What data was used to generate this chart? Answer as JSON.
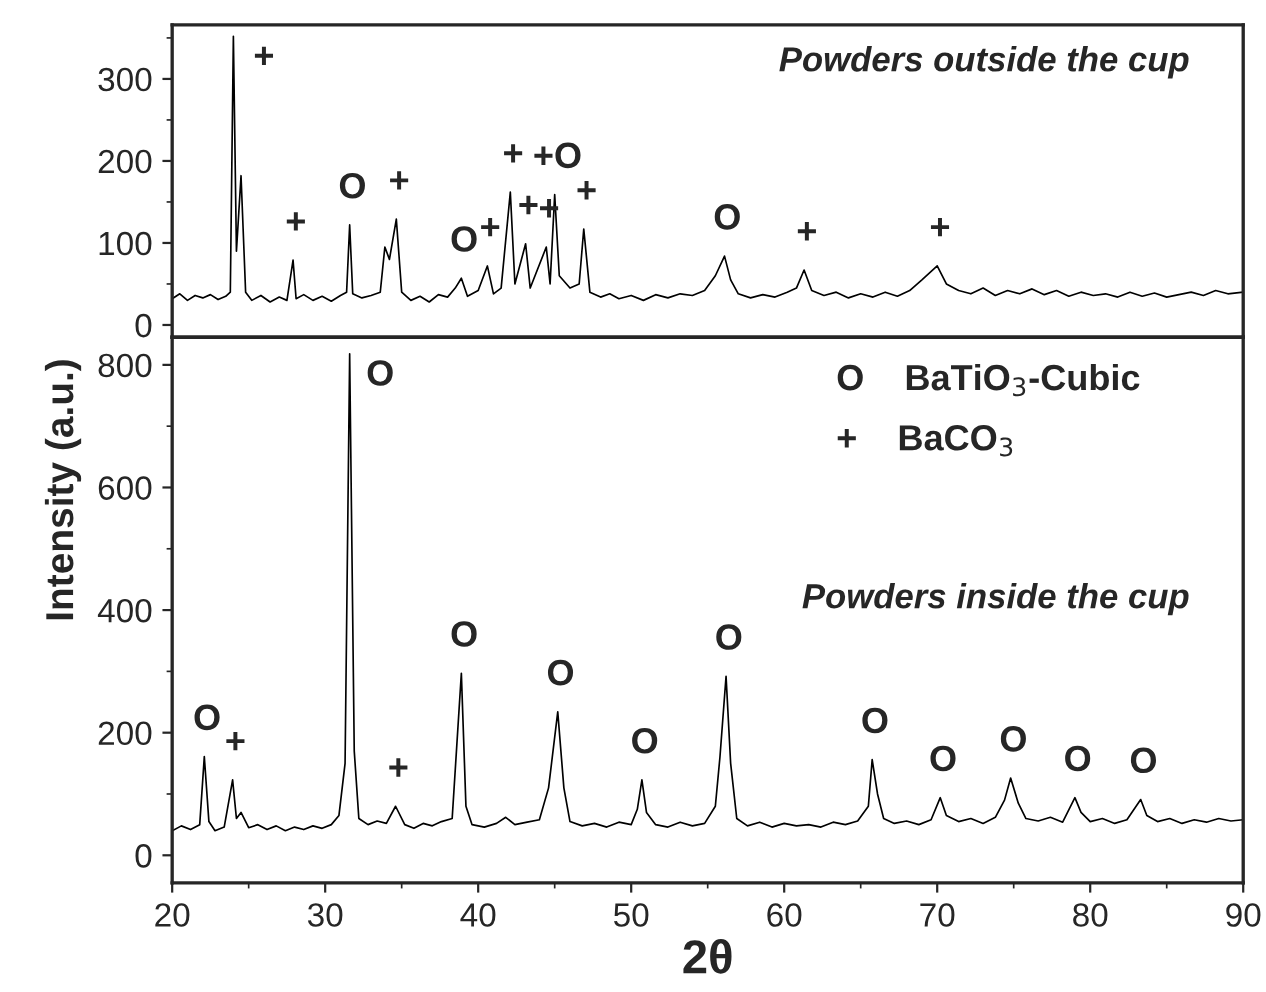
{
  "chart_data": [
    {
      "type": "line",
      "title": "Powders outside the cup",
      "xlim": [
        20,
        90
      ],
      "xticks": [
        20,
        30,
        40,
        50,
        60,
        70,
        80,
        90
      ],
      "ylim": [
        -15,
        366
      ],
      "yticks": [
        0,
        100,
        200,
        300
      ],
      "tick_labels": "y",
      "series": [
        {
          "color": "#000000",
          "x": [
            20,
            20.5,
            21,
            21.5,
            22,
            22.5,
            23,
            23.5,
            23.8,
            24.0,
            24.2,
            24.5,
            24.8,
            25.2,
            25.8,
            26.4,
            27,
            27.5,
            27.9,
            28.1,
            28.6,
            29.2,
            29.8,
            30.4,
            31,
            31.4,
            31.6,
            31.8,
            32.4,
            33,
            33.6,
            33.9,
            34.2,
            34.65,
            35,
            35.6,
            36.2,
            36.8,
            37.4,
            38,
            38.5,
            38.9,
            39.3,
            40,
            40.6,
            41,
            41.5,
            42.1,
            42.4,
            43.1,
            43.4,
            44.45,
            44.7,
            45.0,
            45.3,
            46,
            46.6,
            46.9,
            47.3,
            48,
            48.6,
            49.2,
            50,
            50.8,
            51.6,
            52.4,
            53.2,
            54,
            54.8,
            55.5,
            56.1,
            56.5,
            57,
            57.8,
            58.6,
            59.4,
            60.2,
            60.8,
            61.3,
            61.8,
            62.6,
            63.4,
            64.2,
            65,
            65.8,
            66.6,
            67.4,
            68.2,
            69,
            70,
            70.6,
            71.4,
            72.2,
            73,
            73.8,
            74.6,
            75.4,
            76.2,
            77,
            77.8,
            78.6,
            79.4,
            80.2,
            81,
            81.8,
            82.6,
            83.4,
            84.2,
            85,
            85.8,
            86.6,
            87.4,
            88.2,
            89,
            90
          ],
          "values": [
            32,
            38,
            30,
            36,
            33,
            37,
            31,
            35,
            40,
            352,
            90,
            182,
            40,
            30,
            36,
            28,
            34,
            30,
            79,
            32,
            37,
            30,
            35,
            29,
            36,
            40,
            122,
            38,
            33,
            36,
            40,
            95,
            80,
            129,
            40,
            30,
            35,
            28,
            37,
            34,
            45,
            57,
            35,
            42,
            72,
            38,
            45,
            162,
            50,
            99,
            45,
            95,
            50,
            159,
            60,
            45,
            50,
            117,
            40,
            34,
            38,
            32,
            36,
            30,
            37,
            33,
            38,
            36,
            42,
            60,
            84,
            55,
            38,
            33,
            37,
            34,
            40,
            45,
            67,
            42,
            36,
            40,
            33,
            38,
            34,
            40,
            35,
            42,
            55,
            72,
            50,
            42,
            38,
            45,
            36,
            42,
            38,
            44,
            37,
            42,
            35,
            40,
            36,
            38,
            34,
            40,
            35,
            39,
            34,
            37,
            40,
            36,
            42,
            38,
            40
          ]
        }
      ],
      "annotations": [
        {
          "text": "+",
          "x": 24.0,
          "y": 352
        },
        {
          "text": "+",
          "x": 27.9,
          "y": 79
        },
        {
          "text": "O",
          "x": 31.6,
          "y": 122
        },
        {
          "text": "+",
          "x": 34.65,
          "y": 129
        },
        {
          "text": "O",
          "x": 38.9,
          "y": 57
        },
        {
          "text": "+",
          "x": 40.6,
          "y": 72
        },
        {
          "text": "+",
          "x": 42.1,
          "y": 162
        },
        {
          "text": "+",
          "x": 43.1,
          "y": 99
        },
        {
          "text": "+",
          "x": 44.45,
          "y": 95
        },
        {
          "text": "+O",
          "x": 45.0,
          "y": 159
        },
        {
          "text": "+",
          "x": 46.9,
          "y": 117
        },
        {
          "text": "O",
          "x": 56.1,
          "y": 84
        },
        {
          "text": "+",
          "x": 61.3,
          "y": 67
        },
        {
          "text": "+",
          "x": 70,
          "y": 72
        }
      ]
    },
    {
      "type": "line",
      "title": "Powders inside the cup",
      "xlabel": "2θ",
      "ylabel": "Intensity (a.u.)",
      "xlim": [
        20,
        90
      ],
      "xticks": [
        20,
        30,
        40,
        50,
        60,
        70,
        80,
        90
      ],
      "ylim": [
        -45,
        845
      ],
      "yticks": [
        0,
        200,
        400,
        600,
        800
      ],
      "series": [
        {
          "color": "#000000",
          "x": [
            20,
            20.6,
            21.2,
            21.8,
            22.1,
            22.4,
            22.8,
            23.4,
            23.95,
            24.2,
            24.5,
            25,
            25.6,
            26.2,
            26.8,
            27.4,
            28,
            28.6,
            29.2,
            29.8,
            30.4,
            30.9,
            31.3,
            31.6,
            31.9,
            32.2,
            32.8,
            33.4,
            34,
            34.6,
            35.2,
            35.8,
            36.4,
            37,
            37.6,
            38.3,
            38.9,
            39.2,
            39.6,
            40.4,
            41.2,
            41.8,
            42.4,
            43.2,
            44,
            44.6,
            45.2,
            45.6,
            46,
            46.8,
            47.6,
            48.4,
            49.2,
            50,
            50.4,
            50.7,
            51,
            51.6,
            52.4,
            53.2,
            54,
            54.8,
            55.5,
            55.8,
            56.2,
            56.5,
            56.9,
            57.6,
            58.4,
            59.2,
            60,
            60.8,
            61.6,
            62.4,
            63.2,
            64,
            64.8,
            65.5,
            65.75,
            66.1,
            66.5,
            67.2,
            68,
            68.8,
            69.6,
            70.2,
            70.6,
            71.4,
            72.2,
            73,
            73.8,
            74.4,
            74.8,
            75.3,
            75.8,
            76.6,
            77.4,
            78.2,
            79,
            79.4,
            80,
            80.8,
            81.6,
            82.4,
            83.3,
            83.7,
            84.4,
            85.2,
            86,
            86.8,
            87.6,
            88.4,
            89.2,
            90
          ],
          "values": [
            40,
            48,
            42,
            50,
            161,
            55,
            40,
            46,
            123,
            60,
            70,
            45,
            50,
            42,
            48,
            40,
            46,
            42,
            48,
            44,
            50,
            65,
            150,
            818,
            170,
            60,
            50,
            56,
            52,
            80,
            50,
            44,
            52,
            48,
            55,
            60,
            297,
            80,
            50,
            46,
            52,
            62,
            50,
            54,
            58,
            110,
            234,
            110,
            55,
            48,
            52,
            46,
            54,
            50,
            75,
            123,
            70,
            50,
            46,
            54,
            48,
            52,
            80,
            160,
            292,
            150,
            60,
            48,
            54,
            46,
            52,
            48,
            50,
            46,
            54,
            50,
            56,
            80,
            156,
            100,
            60,
            52,
            56,
            50,
            58,
            94,
            65,
            55,
            60,
            52,
            62,
            90,
            126,
            85,
            60,
            56,
            62,
            54,
            94,
            70,
            55,
            60,
            52,
            58,
            91,
            65,
            55,
            60,
            52,
            58,
            54,
            60,
            56,
            58
          ]
        }
      ],
      "annotations": [
        "O    BaTiO$_{3}$-Cubic",
        "+    BaCO$_{3}$",
        {
          "text": "O",
          "x": 22.1,
          "y": 161
        },
        {
          "text": "+",
          "x": 23.95,
          "y": 123
        },
        {
          "text": "O",
          "x": 31.6,
          "y": 818
        },
        {
          "text": "+",
          "x": 34.6,
          "y": 80
        },
        {
          "text": "O",
          "x": 38.9,
          "y": 297
        },
        {
          "text": "O",
          "x": 45.2,
          "y": 234
        },
        {
          "text": "O",
          "x": 50.7,
          "y": 123
        },
        {
          "text": "O",
          "x": 56.2,
          "y": 292
        },
        {
          "text": "O",
          "x": 65.75,
          "y": 156
        },
        {
          "text": "O",
          "x": 70.2,
          "y": 94
        },
        {
          "text": "O",
          "x": 74.8,
          "y": 126
        },
        {
          "text": "O",
          "x": 79,
          "y": 94
        },
        {
          "text": "O",
          "x": 83.3,
          "y": 91
        }
      ]
    }
  ]
}
